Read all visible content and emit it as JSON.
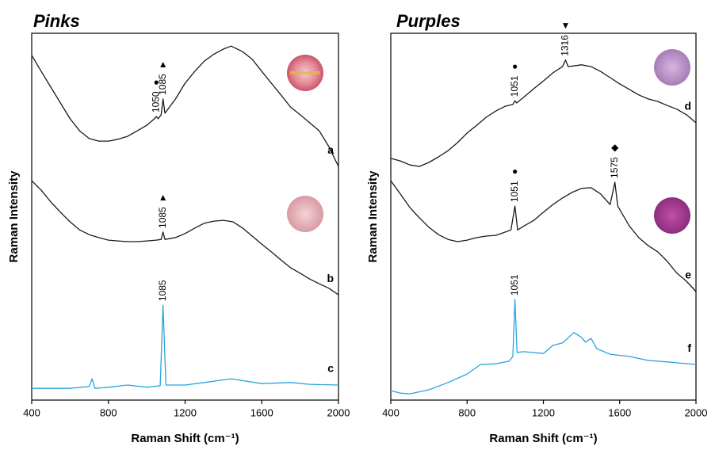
{
  "chart_data": [
    {
      "type": "line",
      "title": "Pinks",
      "xlabel": "Raman Shift (cm⁻¹)",
      "ylabel": "Raman Intensity",
      "xlim": [
        400,
        2000
      ],
      "xticks": [
        400,
        800,
        1200,
        1600,
        2000
      ],
      "ylim": [
        0,
        100
      ],
      "series": [
        {
          "name": "a",
          "color": "#1a1a1a",
          "x": [
            400,
            450,
            500,
            550,
            600,
            650,
            700,
            750,
            800,
            850,
            900,
            950,
            1000,
            1040,
            1050,
            1060,
            1075,
            1085,
            1095,
            1150,
            1200,
            1250,
            1300,
            1350,
            1400,
            1440,
            1500,
            1550,
            1600,
            1650,
            1700,
            1750,
            1800,
            1850,
            1900,
            1950,
            2000
          ],
          "values": [
            94.0,
            89.6,
            85.3,
            81.0,
            76.7,
            73.4,
            71.3,
            70.6,
            70.6,
            71.1,
            71.9,
            73.4,
            74.9,
            76.7,
            77.3,
            76.7,
            77.8,
            82.1,
            78.2,
            82.1,
            86.4,
            89.6,
            92.4,
            94.3,
            95.7,
            96.5,
            95.0,
            92.9,
            89.6,
            86.4,
            83.2,
            79.9,
            77.8,
            75.6,
            73.4,
            69.1,
            63.7
          ],
          "annotations": [
            {
              "x": 1050,
              "symbol": "●"
            },
            {
              "x": 1085,
              "symbol": "▲"
            }
          ]
        },
        {
          "name": "b",
          "color": "#1a1a1a",
          "x": [
            400,
            450,
            500,
            550,
            600,
            650,
            700,
            750,
            800,
            850,
            900,
            950,
            1000,
            1050,
            1075,
            1085,
            1095,
            1150,
            1200,
            1250,
            1300,
            1350,
            1400,
            1450,
            1500,
            1550,
            1600,
            1650,
            1700,
            1750,
            1800,
            1850,
            1900,
            1950,
            2000
          ],
          "values": [
            59.8,
            57.2,
            54.0,
            51.2,
            48.6,
            46.4,
            45.1,
            44.3,
            43.6,
            43.4,
            43.2,
            43.2,
            43.4,
            43.6,
            43.8,
            45.8,
            43.8,
            44.3,
            45.4,
            46.9,
            48.2,
            48.8,
            49.0,
            48.6,
            46.9,
            44.7,
            42.5,
            40.4,
            38.2,
            36.1,
            34.6,
            33.0,
            31.7,
            30.5,
            28.7
          ],
          "annotations": [
            {
              "x": 1085,
              "symbol": "▲"
            }
          ]
        },
        {
          "name": "c",
          "color": "#29a3e0",
          "x": [
            400,
            600,
            700,
            715,
            730,
            800,
            900,
            1000,
            1070,
            1085,
            1100,
            1200,
            1300,
            1440,
            1600,
            1750,
            1850,
            2000
          ],
          "values": [
            3.2,
            3.2,
            3.7,
            5.8,
            3.2,
            3.5,
            4.1,
            3.5,
            3.9,
            25.9,
            4.1,
            4.1,
            4.8,
            5.8,
            4.5,
            4.8,
            4.3,
            4.1
          ],
          "annotations": [
            {
              "x": 1085
            }
          ]
        }
      ]
    },
    {
      "type": "line",
      "title": "Purples",
      "xlabel": "Raman Shift (cm⁻¹)",
      "ylabel": "Raman Intensity",
      "xlim": [
        400,
        2000
      ],
      "xticks": [
        400,
        800,
        1200,
        1600,
        2000
      ],
      "ylim": [
        0,
        100
      ],
      "series": [
        {
          "name": "d",
          "color": "#1a1a1a",
          "x": [
            400,
            450,
            500,
            550,
            600,
            650,
            700,
            750,
            800,
            850,
            900,
            950,
            1000,
            1040,
            1051,
            1060,
            1100,
            1150,
            1200,
            1250,
            1300,
            1316,
            1330,
            1400,
            1450,
            1500,
            1550,
            1600,
            1650,
            1700,
            1750,
            1800,
            1850,
            1900,
            1950,
            2000
          ],
          "values": [
            65.9,
            65.2,
            64.1,
            63.7,
            64.8,
            66.3,
            68.0,
            70.2,
            72.8,
            74.9,
            77.1,
            78.8,
            80.1,
            80.6,
            81.6,
            81.0,
            82.7,
            84.9,
            87.0,
            89.2,
            90.9,
            92.7,
            90.9,
            91.4,
            90.9,
            89.6,
            87.9,
            86.2,
            84.7,
            83.2,
            82.1,
            81.4,
            80.3,
            79.3,
            77.8,
            75.6
          ],
          "annotations": [
            {
              "x": 1051,
              "symbol": "●"
            },
            {
              "x": 1316,
              "symbol": "▼"
            }
          ]
        },
        {
          "name": "e",
          "color": "#1a1a1a",
          "x": [
            400,
            450,
            500,
            550,
            600,
            650,
            700,
            750,
            800,
            850,
            900,
            950,
            1000,
            1030,
            1051,
            1065,
            1100,
            1150,
            1200,
            1250,
            1300,
            1350,
            1400,
            1450,
            1500,
            1550,
            1575,
            1590,
            1650,
            1700,
            1750,
            1800,
            1850,
            1900,
            1950,
            2000
          ],
          "values": [
            59.8,
            56.2,
            52.5,
            49.7,
            47.1,
            45.1,
            43.8,
            43.2,
            43.6,
            44.3,
            44.7,
            44.9,
            45.8,
            46.4,
            52.9,
            46.4,
            47.5,
            49.0,
            51.2,
            53.3,
            55.1,
            56.6,
            57.7,
            57.9,
            56.2,
            53.3,
            59.4,
            52.9,
            47.5,
            44.3,
            42.1,
            40.4,
            37.8,
            34.6,
            32.4,
            29.6
          ],
          "annotations": [
            {
              "x": 1051,
              "symbol": "●"
            },
            {
              "x": 1575,
              "symbol": "◆"
            }
          ]
        },
        {
          "name": "f",
          "color": "#29a3e0",
          "x": [
            400,
            450,
            500,
            600,
            700,
            800,
            870,
            950,
            1020,
            1040,
            1051,
            1062,
            1100,
            1200,
            1250,
            1300,
            1360,
            1400,
            1420,
            1450,
            1480,
            1550,
            1650,
            1750,
            1850,
            2000
          ],
          "values": [
            2.6,
            1.9,
            1.7,
            2.8,
            4.8,
            7.1,
            9.7,
            9.9,
            10.6,
            11.9,
            27.4,
            13.0,
            13.2,
            12.7,
            14.9,
            15.6,
            18.4,
            17.1,
            15.8,
            16.8,
            14.0,
            12.5,
            11.9,
            10.8,
            10.4,
            9.7
          ],
          "annotations": [
            {
              "x": 1051
            }
          ]
        }
      ]
    }
  ]
}
